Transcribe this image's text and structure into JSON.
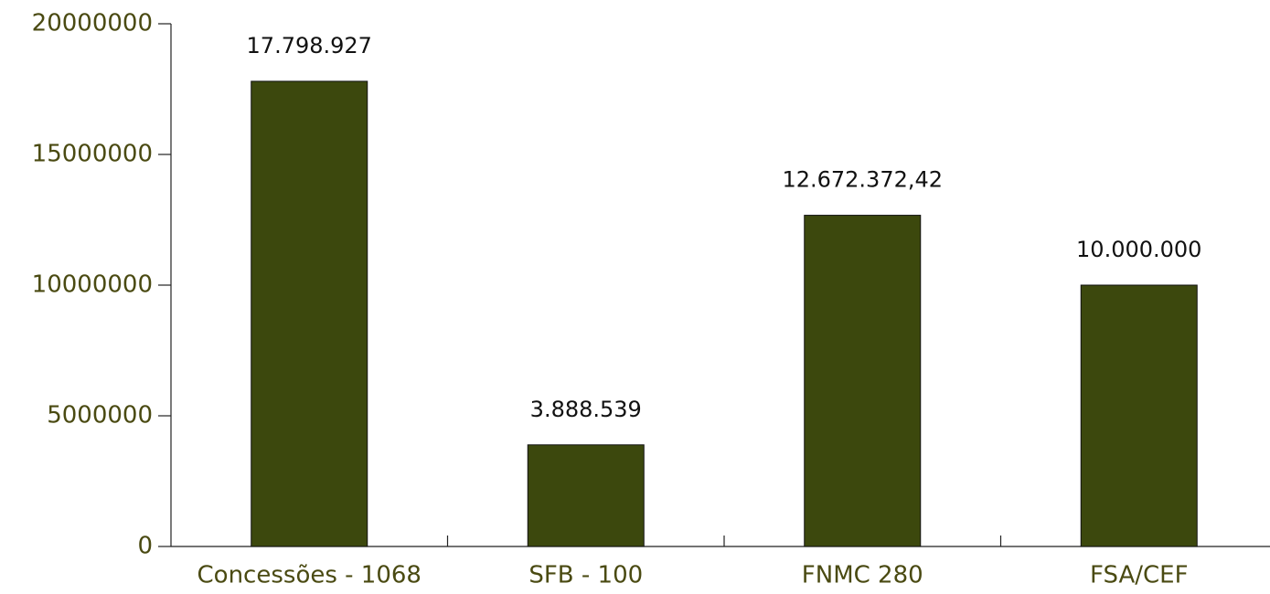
{
  "chart_data": {
    "type": "bar",
    "categories": [
      "Concessões - 1068",
      "SFB - 100",
      "FNMC 280",
      "FSA/CEF"
    ],
    "values": [
      17798927,
      3888539,
      12672372.42,
      10000000
    ],
    "value_labels": [
      "17.798.927",
      "3.888.539",
      "12.672.372,42",
      "10.000.000"
    ],
    "color": "#3c480d",
    "ylim": [
      0,
      20000000
    ],
    "yticks": [
      0,
      5000000,
      10000000,
      15000000,
      20000000
    ],
    "grid": false
  }
}
